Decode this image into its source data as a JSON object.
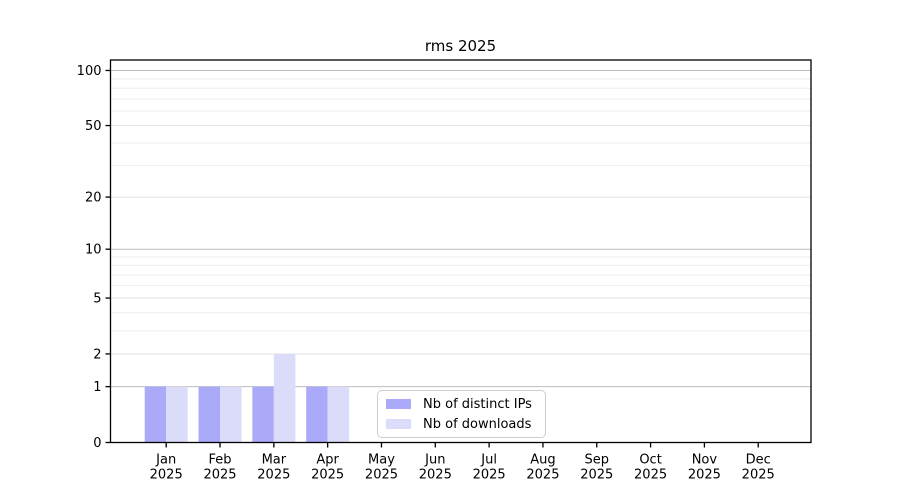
{
  "chart_data": {
    "type": "bar",
    "title": "rms 2025",
    "xlabel": "",
    "ylabel": "",
    "categories": [
      "Jan",
      "Feb",
      "Mar",
      "Apr",
      "May",
      "Jun",
      "Jul",
      "Aug",
      "Sep",
      "Oct",
      "Nov",
      "Dec"
    ],
    "category_year": "2025",
    "series": [
      {
        "name": "Nb of distinct IPs",
        "color": "#aaaaf9",
        "values": [
          1,
          1,
          1,
          1,
          0,
          0,
          0,
          0,
          0,
          0,
          0,
          0
        ]
      },
      {
        "name": "Nb of downloads",
        "color": "#dbdbfa",
        "values": [
          1,
          1,
          2,
          1,
          0,
          0,
          0,
          0,
          0,
          0,
          0,
          0
        ]
      }
    ],
    "y_scale": "log10(1+x)",
    "ylim": [
      0,
      114
    ],
    "y_ticks": [
      0,
      1,
      2,
      5,
      10,
      20,
      50,
      100
    ],
    "y_minor_gridlines": [
      3,
      4,
      6,
      7,
      8,
      9,
      30,
      40,
      60,
      70,
      80,
      90
    ],
    "grid": "horizontal",
    "legend_position": "inside-bottom-center",
    "colors": {
      "gridline_strong": "#bdbdbd",
      "gridline_light": "#e2e2e2",
      "gridline_minor": "#eeeeee",
      "axis": "#000000",
      "text": "#000000",
      "background": "#ffffff"
    }
  }
}
